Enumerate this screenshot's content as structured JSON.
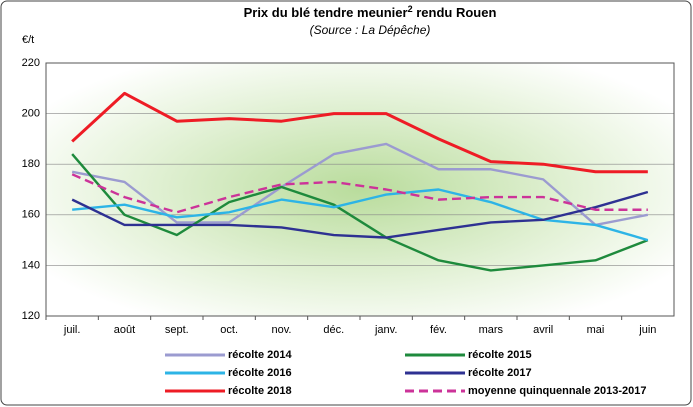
{
  "chart_data": {
    "type": "line",
    "title": {
      "text": "Prix du blé tendre meunier",
      "sup": "2",
      "rest": " rendu Rouen"
    },
    "subtitle": "(Source : La Dépêche)",
    "y_label": "€/t",
    "categories": [
      "juil.",
      "août",
      "sept.",
      "oct.",
      "nov.",
      "déc.",
      "janv.",
      "fév.",
      "mars",
      "avril",
      "mai",
      "juin"
    ],
    "ylim": [
      120,
      220
    ],
    "yticks": [
      120,
      140,
      160,
      180,
      200,
      220
    ],
    "series": [
      {
        "name": "récolte 2014",
        "color": "#9b9bd0",
        "values": [
          177,
          173,
          157,
          157,
          171,
          184,
          188,
          178,
          178,
          174,
          156,
          160
        ]
      },
      {
        "name": "récolte 2015",
        "color": "#1e8a3c",
        "values": [
          184,
          160,
          152,
          165,
          171,
          164,
          151,
          142,
          138,
          140,
          142,
          150
        ]
      },
      {
        "name": "récolte 2016",
        "color": "#2db4e6",
        "values": [
          162,
          164,
          159,
          161,
          166,
          163,
          168,
          170,
          165,
          158,
          156,
          150
        ]
      },
      {
        "name": "récolte 2017",
        "color": "#2e3192",
        "values": [
          166,
          156,
          156,
          156,
          155,
          152,
          151,
          154,
          157,
          158,
          163,
          169
        ]
      },
      {
        "name": "récolte 2018",
        "color": "#ee1c25",
        "values": [
          189,
          208,
          197,
          198,
          197,
          200,
          200,
          190,
          181,
          180,
          177,
          177
        ]
      },
      {
        "name": "moyenne quinquennale 2013-2017",
        "color": "#cc3399",
        "dashed": true,
        "values": [
          176,
          167,
          161,
          167,
          172,
          173,
          170,
          166,
          167,
          167,
          162,
          162
        ]
      }
    ]
  }
}
